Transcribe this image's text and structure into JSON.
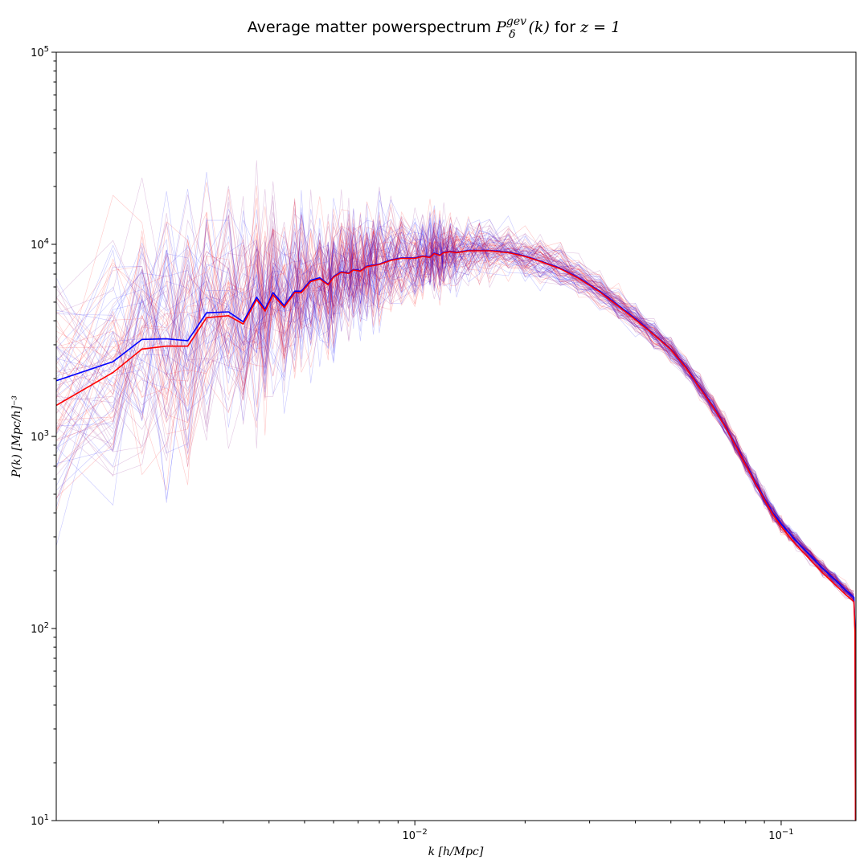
{
  "chart_data": {
    "type": "line",
    "title": "Average matter powerspectrum",
    "title_math": {
      "symbol": "P",
      "superscript": "gev",
      "subscript": "δ",
      "argument": "(k)",
      "connector": "for",
      "condition": "z = 1"
    },
    "xlabel": "k [h/Mpc]",
    "ylabel": "P(k) [Mpc/h]⁻³",
    "xscale": "log",
    "yscale": "log",
    "xlim": [
      0.00105,
      0.16
    ],
    "ylim": [
      10,
      100000
    ],
    "grid": false,
    "legend": "none",
    "x_ticks": [
      {
        "value": 0.01,
        "base": "10",
        "exp": "−2"
      },
      {
        "value": 0.1,
        "base": "10",
        "exp": "−1"
      }
    ],
    "y_ticks": [
      {
        "value": 10,
        "base": "10",
        "exp": "1"
      },
      {
        "value": 100,
        "base": "10",
        "exp": "2"
      },
      {
        "value": 1000,
        "base": "10",
        "exp": "3"
      },
      {
        "value": 10000,
        "base": "10",
        "exp": "4"
      },
      {
        "value": 100000,
        "base": "10",
        "exp": "5"
      }
    ],
    "colors": {
      "series_a": "#0000ff",
      "series_b": "#ff0000",
      "overlap": "#800080"
    },
    "series": [
      {
        "color": "#0000ff",
        "x": [
          0.00105,
          0.0015,
          0.0018,
          0.0021,
          0.0024,
          0.0027,
          0.0031,
          0.0034,
          0.0037,
          0.0039,
          0.0041,
          0.0044,
          0.0047,
          0.0049,
          0.0052,
          0.0055,
          0.0058,
          0.006,
          0.0063,
          0.0066,
          0.0068,
          0.0071,
          0.0074,
          0.0077,
          0.008,
          0.0086,
          0.0092,
          0.01,
          0.0105,
          0.011,
          0.0113,
          0.0117,
          0.012,
          0.0125,
          0.013,
          0.014,
          0.015,
          0.016,
          0.018,
          0.02,
          0.022,
          0.025,
          0.028,
          0.032,
          0.036,
          0.04,
          0.045,
          0.05,
          0.055,
          0.06,
          0.065,
          0.07,
          0.075,
          0.08,
          0.085,
          0.09,
          0.095,
          0.1,
          0.105,
          0.11,
          0.12,
          0.13,
          0.14,
          0.15,
          0.158,
          0.159,
          0.1595
        ],
        "y": [
          1950,
          2450,
          3200,
          3220,
          3150,
          4400,
          4450,
          3950,
          5300,
          4600,
          5600,
          4800,
          5700,
          5700,
          6500,
          6700,
          6200,
          6800,
          7200,
          7100,
          7400,
          7300,
          7700,
          7800,
          7900,
          8300,
          8500,
          8500,
          8700,
          8600,
          9000,
          8800,
          9100,
          9200,
          9100,
          9300,
          9300,
          9300,
          9100,
          8700,
          8200,
          7500,
          6700,
          5700,
          4800,
          4100,
          3400,
          2850,
          2300,
          1800,
          1450,
          1150,
          910,
          720,
          580,
          475,
          400,
          350,
          315,
          285,
          240,
          205,
          180,
          158,
          145,
          100,
          10
        ]
      },
      {
        "color": "#ff0000",
        "x": [
          0.00105,
          0.0015,
          0.0018,
          0.0021,
          0.0024,
          0.0027,
          0.0031,
          0.0034,
          0.0037,
          0.0039,
          0.0041,
          0.0044,
          0.0047,
          0.0049,
          0.0052,
          0.0055,
          0.0058,
          0.006,
          0.0063,
          0.0066,
          0.0068,
          0.0071,
          0.0074,
          0.0077,
          0.008,
          0.0086,
          0.0092,
          0.01,
          0.0105,
          0.011,
          0.0113,
          0.0117,
          0.012,
          0.0125,
          0.013,
          0.014,
          0.015,
          0.016,
          0.018,
          0.02,
          0.022,
          0.025,
          0.028,
          0.032,
          0.036,
          0.04,
          0.045,
          0.05,
          0.055,
          0.06,
          0.065,
          0.07,
          0.075,
          0.08,
          0.085,
          0.09,
          0.095,
          0.1,
          0.105,
          0.11,
          0.12,
          0.13,
          0.14,
          0.15,
          0.158,
          0.159,
          0.1595
        ],
        "y": [
          1450,
          2150,
          2850,
          2950,
          2950,
          4150,
          4250,
          3850,
          5150,
          4500,
          5450,
          4700,
          5600,
          5600,
          6400,
          6600,
          6150,
          6750,
          7150,
          7050,
          7350,
          7250,
          7650,
          7750,
          7850,
          8250,
          8450,
          8450,
          8650,
          8550,
          8950,
          8750,
          9050,
          9150,
          9050,
          9250,
          9250,
          9250,
          9050,
          8650,
          8150,
          7450,
          6650,
          5650,
          4750,
          4050,
          3380,
          2830,
          2280,
          1780,
          1440,
          1140,
          900,
          710,
          572,
          468,
          392,
          340,
          302,
          272,
          228,
          194,
          170,
          150,
          138,
          95,
          10
        ]
      }
    ]
  }
}
